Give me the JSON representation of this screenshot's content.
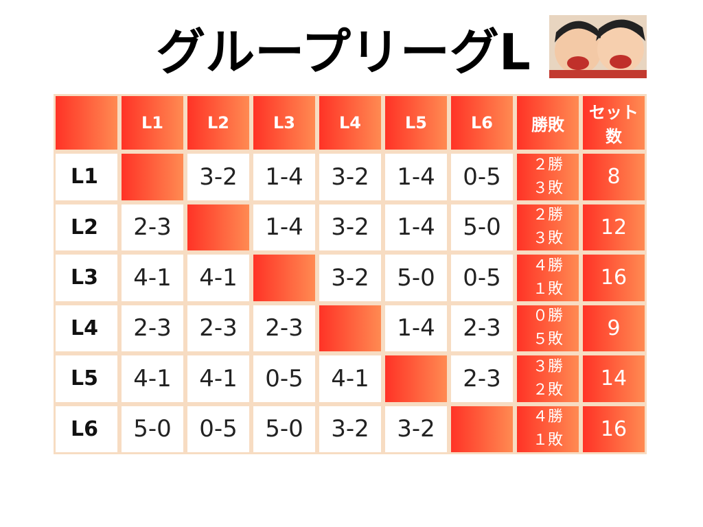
{
  "header": {
    "title": "グループリーグL"
  },
  "table": {
    "columns": [
      "L1",
      "L2",
      "L3",
      "L4",
      "L5",
      "L6",
      "勝敗",
      "セット数"
    ],
    "rows": [
      {
        "label": "L1",
        "results": [
          null,
          "3-2",
          "1-4",
          "3-2",
          "1-4",
          "0-5"
        ],
        "record": [
          "２勝",
          "３敗"
        ],
        "sets": 8
      },
      {
        "label": "L2",
        "results": [
          "2-3",
          null,
          "1-4",
          "3-2",
          "1-4",
          "5-0"
        ],
        "record": [
          "２勝",
          "３敗"
        ],
        "sets": 12
      },
      {
        "label": "L3",
        "results": [
          "4-1",
          "4-1",
          null,
          "3-2",
          "5-0",
          "0-5"
        ],
        "record": [
          "４勝",
          "１敗"
        ],
        "sets": 16
      },
      {
        "label": "L4",
        "results": [
          "2-3",
          "2-3",
          "2-3",
          null,
          "1-4",
          "2-3"
        ],
        "record": [
          "０勝",
          "５敗"
        ],
        "sets": 9
      },
      {
        "label": "L5",
        "results": [
          "4-1",
          "4-1",
          "0-5",
          "4-1",
          null,
          "2-3"
        ],
        "record": [
          "３勝",
          "２敗"
        ],
        "sets": 14
      },
      {
        "label": "L6",
        "results": [
          "5-0",
          "0-5",
          "5-0",
          "3-2",
          "3-2",
          null
        ],
        "record": [
          "４勝",
          "１敗"
        ],
        "sets": 16
      }
    ]
  }
}
